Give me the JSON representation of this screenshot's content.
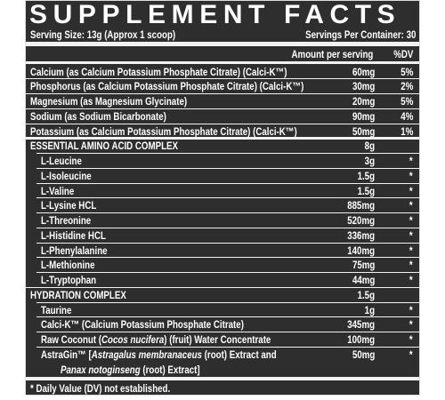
{
  "title": "SUPPLEMENT FACTS",
  "serving_size": "Serving Size: 13g (Approx 1 scoop)",
  "servings_per_container": "Servings Per Container: 30",
  "header": {
    "amount": "Amount per serving",
    "dv": "%DV"
  },
  "rows": [
    {
      "name": "Calcium (as Calcium Potassium Phosphate Citrate) (Calci-K™)",
      "amount": "60mg",
      "dv": "5%"
    },
    {
      "name": "Phosphorus (as Calcium Potassium Phosphate Citrate) (Calci-K™)",
      "amount": "30mg",
      "dv": "2%"
    },
    {
      "name": "Magnesium (as Magnesium Glycinate)",
      "amount": "20mg",
      "dv": "5%"
    },
    {
      "name": "Sodium (as Sodium Bicarbonate)",
      "amount": "90mg",
      "dv": "4%"
    },
    {
      "name": "Potassium (as Calcium Potassium Phosphate Citrate) (Calci-K™)",
      "amount": "50mg",
      "dv": "1%"
    },
    {
      "name": "ESSENTIAL AMINO ACID COMPLEX",
      "amount": "8g",
      "section": true
    },
    {
      "name": "L-Leucine",
      "amount": "3g",
      "dv": "*",
      "sub": true
    },
    {
      "name": "L-Isoleucine",
      "amount": "1.5g",
      "dv": "*",
      "sub": true
    },
    {
      "name": "L-Valine",
      "amount": "1.5g",
      "dv": "*",
      "sub": true
    },
    {
      "name": "L-Lysine HCL",
      "amount": "885mg",
      "dv": "*",
      "sub": true
    },
    {
      "name": "L-Threonine",
      "amount": "520mg",
      "dv": "*",
      "sub": true
    },
    {
      "name": "L-Histidine HCL",
      "amount": "336mg",
      "dv": "*",
      "sub": true
    },
    {
      "name": "L-Phenylalanine",
      "amount": "140mg",
      "dv": "*",
      "sub": true
    },
    {
      "name": "L-Methionine",
      "amount": "75mg",
      "dv": "*",
      "sub": true
    },
    {
      "name": "L-Tryptophan",
      "amount": "44mg",
      "dv": "*",
      "sub": true
    },
    {
      "name": "HYDRATION COMPLEX",
      "amount": "1.5g",
      "section": true
    },
    {
      "name": "Taurine",
      "amount": "1g",
      "dv": "*",
      "sub": true
    },
    {
      "name": "Calci-K™ (Calcium Potassium Phosphate Citrate)",
      "amount": "345mg",
      "dv": "*",
      "sub": true
    },
    {
      "name_lines": [
        [
          {
            "text": "Raw Coconut ("
          },
          {
            "text": "Cocos nucifera",
            "italic": true
          },
          {
            "text": ") (fruit) Water Concentrate"
          }
        ]
      ],
      "amount": "100mg",
      "dv": "*",
      "sub": true
    },
    {
      "name_lines": [
        [
          {
            "text": "AstraGin™ ["
          },
          {
            "text": "Astragalus membranaceus",
            "italic": true
          },
          {
            "text": " (root) Extract and"
          }
        ],
        [
          {
            "text": "Panax notoginseng",
            "italic": true
          },
          {
            "text": " (root) Extract]"
          }
        ]
      ],
      "amount": "50mg",
      "dv": "*",
      "sub": true
    }
  ],
  "footnote": "* Daily Value (DV) not established."
}
